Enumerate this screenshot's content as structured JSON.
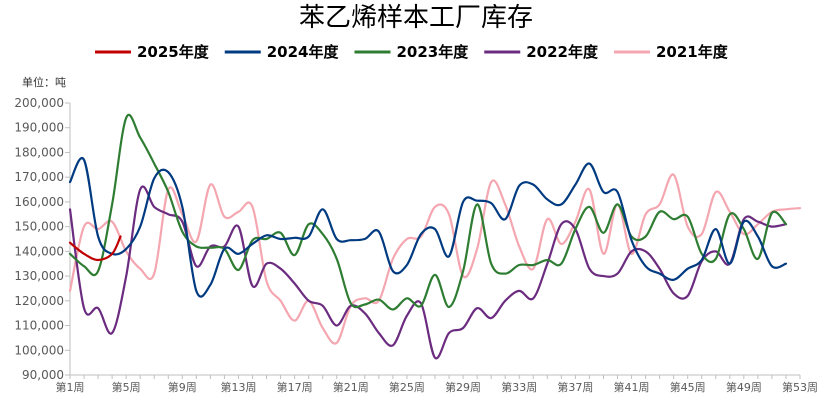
{
  "chart_data": {
    "type": "line",
    "title": "苯乙烯样本工厂库存",
    "unit_label": "单位：吨",
    "ylim": [
      90000,
      200000
    ],
    "y_ticks": [
      "90,000",
      "100,000",
      "110,000",
      "120,000",
      "130,000",
      "140,000",
      "150,000",
      "160,000",
      "170,000",
      "180,000",
      "190,000",
      "200,000"
    ],
    "x_ticks": [
      "第1周",
      "第5周",
      "第9周",
      "第13周",
      "第17周",
      "第21周",
      "第25周",
      "第29周",
      "第33周",
      "第37周",
      "第41周",
      "第45周",
      "第49周",
      "第53周"
    ],
    "grid": false,
    "legend_position": "top",
    "series": [
      {
        "name": "2025年度",
        "color": "#C00000",
        "x": [
          1,
          2,
          3,
          4,
          4.6
        ],
        "y": [
          143500,
          139000,
          136500,
          139000,
          146000
        ]
      },
      {
        "name": "2024年度",
        "color": "#003A80",
        "x": [
          1,
          2,
          3,
          4,
          5,
          6,
          7,
          8,
          9,
          10,
          11,
          12,
          13,
          14,
          15,
          16,
          17,
          18,
          19,
          20,
          21,
          22,
          23,
          24,
          25,
          26,
          27,
          28,
          29,
          30,
          31,
          32,
          33,
          34,
          35,
          36,
          37,
          38,
          39,
          40,
          41,
          42,
          43,
          44,
          45,
          46,
          47,
          48,
          49,
          50,
          51,
          52
        ],
        "y": [
          168000,
          177000,
          146000,
          139000,
          141000,
          150000,
          169500,
          172000,
          158000,
          124000,
          126500,
          141000,
          139000,
          143000,
          146500,
          145000,
          145500,
          146000,
          157000,
          145000,
          144500,
          145000,
          148000,
          132000,
          134500,
          147000,
          149000,
          138000,
          160000,
          160500,
          159500,
          153000,
          166500,
          167000,
          161000,
          159000,
          167000,
          175500,
          164000,
          164000,
          144500,
          134000,
          131000,
          128500,
          133000,
          136500,
          149000,
          135000,
          152000,
          146000,
          134000,
          135000
        ]
      },
      {
        "name": "2023年度",
        "color": "#2E7D32",
        "x": [
          1,
          2,
          3,
          4,
          5,
          6,
          7,
          8,
          9,
          10,
          11,
          12,
          13,
          14,
          15,
          16,
          17,
          18,
          19,
          20,
          21,
          22,
          23,
          24,
          25,
          26,
          27,
          28,
          29,
          30,
          31,
          32,
          33,
          34,
          35,
          36,
          37,
          38,
          39,
          40,
          41,
          42,
          43,
          44,
          45,
          46,
          47,
          48,
          49,
          50,
          51,
          52
        ],
        "y": [
          139000,
          134000,
          132000,
          159000,
          194000,
          186000,
          175500,
          164000,
          148000,
          142000,
          141500,
          141000,
          132500,
          144500,
          145000,
          147500,
          138500,
          151000,
          147000,
          137000,
          119000,
          118500,
          120500,
          116500,
          121000,
          118000,
          130500,
          117500,
          132000,
          159000,
          135000,
          131000,
          134500,
          134500,
          136500,
          135000,
          149000,
          158000,
          147500,
          159000,
          146000,
          146000,
          156000,
          153000,
          154000,
          139000,
          137000,
          155000,
          149000,
          137000,
          155500,
          151000
        ]
      },
      {
        "name": "2022年度",
        "color": "#6B2C80",
        "x": [
          1,
          2,
          3,
          4,
          5,
          6,
          7,
          8,
          9,
          10,
          11,
          12,
          13,
          14,
          15,
          16,
          17,
          18,
          19,
          20,
          21,
          22,
          23,
          24,
          25,
          26,
          27,
          28,
          29,
          30,
          31,
          32,
          33,
          34,
          35,
          36,
          37,
          38,
          39,
          40,
          41,
          42,
          43,
          44,
          45,
          46,
          47,
          48,
          49,
          50,
          51,
          52
        ],
        "y": [
          157000,
          117000,
          117000,
          107000,
          130000,
          165000,
          158000,
          155000,
          152000,
          134000,
          142000,
          142000,
          150000,
          126000,
          135000,
          133000,
          127000,
          120000,
          118000,
          110000,
          118000,
          115000,
          107000,
          102000,
          114000,
          119000,
          97000,
          107000,
          109000,
          117000,
          113000,
          120000,
          124000,
          121000,
          135000,
          151000,
          149000,
          133000,
          130000,
          131000,
          140000,
          140000,
          133000,
          123000,
          122000,
          136000,
          140000,
          135000,
          153000,
          152000,
          150000,
          151000
        ]
      },
      {
        "name": "2021年度",
        "color": "#F4A7B0",
        "x": [
          1,
          2,
          3,
          4,
          5,
          6,
          7,
          8,
          9,
          10,
          11,
          12,
          13,
          14,
          15,
          16,
          17,
          18,
          19,
          20,
          21,
          22,
          23,
          24,
          25,
          26,
          27,
          28,
          29,
          30,
          31,
          32,
          33,
          34,
          35,
          36,
          37,
          38,
          39,
          40,
          41,
          42,
          43,
          44,
          45,
          46,
          47,
          48,
          49,
          50,
          51,
          52,
          53
        ],
        "y": [
          124000,
          150000,
          149000,
          152000,
          140000,
          133000,
          131000,
          165000,
          155000,
          144000,
          167000,
          154000,
          156000,
          158000,
          128000,
          120000,
          112000,
          120000,
          109000,
          103000,
          118000,
          121000,
          120000,
          137000,
          145000,
          146000,
          158000,
          155000,
          130000,
          141000,
          168000,
          159000,
          142000,
          133000,
          153000,
          143000,
          152000,
          165000,
          139000,
          159000,
          139000,
          155000,
          159000,
          171000,
          150000,
          147000,
          164000,
          156000,
          147000,
          151000,
          156000,
          157000,
          157500
        ]
      }
    ]
  }
}
